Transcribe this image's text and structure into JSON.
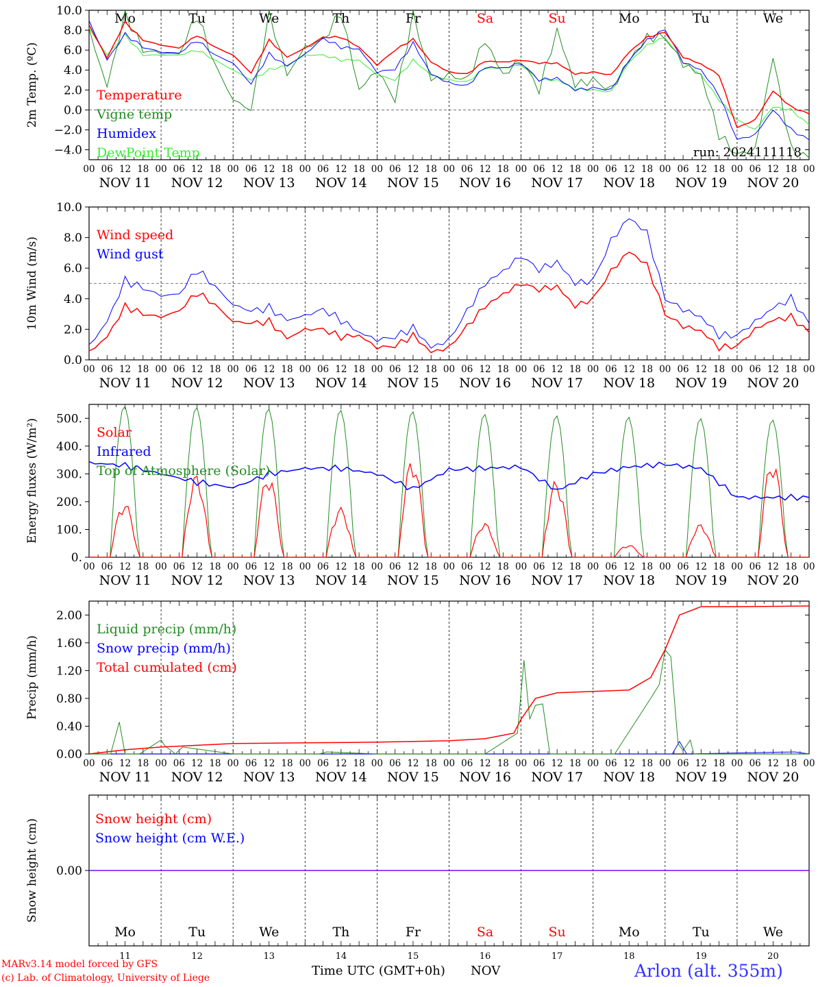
{
  "colors": {
    "red": "#ff0000",
    "darkgreen": "#228b22",
    "blue": "#0000ff",
    "lightgreen": "#33ee33",
    "purple": "#7f00ff",
    "weekend": "#ff0000",
    "footer_station": "#3333ff"
  },
  "days": {
    "weekday_labels": [
      "Mo",
      "Tu",
      "We",
      "Th",
      "Fr",
      "Sa",
      "Su",
      "Mo",
      "Tu",
      "We"
    ],
    "weekend_flags": [
      false,
      false,
      false,
      false,
      false,
      true,
      true,
      false,
      false,
      false
    ],
    "date_labels": [
      "NOV 11",
      "NOV 12",
      "NOV 13",
      "NOV 14",
      "NOV 15",
      "NOV 16",
      "NOV 17",
      "NOV 18",
      "NOV 19",
      "NOV 20"
    ],
    "day_numbers": [
      "11",
      "12",
      "13",
      "14",
      "15",
      "16",
      "17",
      "18",
      "19",
      "20"
    ],
    "hour_labels": [
      "00",
      "06",
      "12",
      "18"
    ],
    "final_hour_label": "00"
  },
  "panels": {
    "temp": {
      "ylabel": "2m Temp. (ºC)",
      "tick_labels": [
        "10.0",
        "8.0",
        "6.0",
        "4.0",
        "2.0",
        "0.0",
        "−2.0",
        "−4.0"
      ],
      "legend": [
        "Temperature",
        "Vigne temp",
        "Humidex",
        "DewPoint Temp"
      ],
      "run_label": "run: 2024111118"
    },
    "wind": {
      "ylabel": "10m Wind (m/s)",
      "tick_labels": [
        "10.0",
        "8.0",
        "6.0",
        "4.0",
        "2.0",
        "0.0"
      ],
      "legend": [
        "Wind speed",
        "Wind gust"
      ]
    },
    "energy": {
      "ylabel": "Energy fluxes (W/m²)",
      "tick_labels": [
        "500.",
        "400.",
        "300.",
        "200.",
        "100.",
        "0."
      ],
      "legend": [
        "Solar",
        "Infrared",
        "Top of Atmosphere (Solar)"
      ]
    },
    "precip": {
      "ylabel": "Precip (mm/h)",
      "tick_labels": [
        "2.00",
        "1.60",
        "1.20",
        "0.80",
        "0.40",
        "0.00"
      ],
      "legend": [
        "Liquid precip (mm/h)",
        "Snow precip (mm/h)",
        "Total cumulated (cm)"
      ]
    },
    "snow": {
      "ylabel": "Snow height (cm)",
      "tick_labels": [
        "0.00"
      ],
      "legend": [
        "Snow height (cm)",
        "Snow height (cm W.E.)"
      ]
    }
  },
  "footer": {
    "model_line": "MARv3.14 model forced by GFS",
    "copyright_line": "(c) Lab. of Climatology, University of Liege",
    "axis_title": "Time UTC (GMT+0h)",
    "month": "NOV",
    "station": "Arlon (alt. 355m)"
  },
  "chart_data": [
    {
      "type": "line",
      "title": "",
      "ylabel": "2m Temp. (ºC)",
      "ylim": [
        -5,
        10
      ],
      "x_range_days": [
        0,
        10
      ],
      "x_unit": "days since NOV 11 00 UTC",
      "reference_line": 0,
      "series": [
        {
          "name": "Temperature",
          "color": "#ff0000",
          "x": [
            0,
            0.25,
            0.5,
            0.75,
            1,
            1.25,
            1.5,
            1.75,
            2,
            2.25,
            2.5,
            2.75,
            3,
            3.25,
            3.5,
            3.75,
            4,
            4.25,
            4.5,
            4.75,
            5,
            5.25,
            5.5,
            5.75,
            6,
            6.25,
            6.5,
            6.75,
            7,
            7.25,
            7.5,
            7.75,
            8,
            8.25,
            8.5,
            8.75,
            9,
            9.25,
            9.5,
            9.75,
            10
          ],
          "values": [
            8.5,
            5.2,
            8.8,
            7.0,
            6.5,
            6.2,
            7.5,
            6.3,
            5.5,
            3.7,
            7.0,
            5.3,
            6.2,
            7.3,
            7.3,
            6.3,
            4.5,
            6.0,
            7.1,
            4.8,
            3.8,
            3.6,
            4.9,
            4.8,
            5.0,
            4.7,
            4.7,
            3.6,
            3.8,
            3.5,
            5.8,
            7.3,
            7.8,
            5.3,
            4.6,
            3.5,
            -1.8,
            -1.0,
            1.9,
            0.3,
            -0.4
          ]
        },
        {
          "name": "Vigne temp",
          "color": "#228b22",
          "x": [
            0,
            0.25,
            0.5,
            0.75,
            1,
            1.25,
            1.5,
            1.75,
            2,
            2.25,
            2.5,
            2.75,
            3,
            3.25,
            3.5,
            3.75,
            4,
            4.25,
            4.5,
            4.75,
            5,
            5.25,
            5.5,
            5.75,
            6,
            6.25,
            6.5,
            6.75,
            7,
            7.25,
            7.5,
            7.75,
            8,
            8.25,
            8.5,
            8.75,
            9,
            9.25,
            9.5,
            9.75,
            10
          ],
          "values": [
            8.0,
            2.3,
            9.8,
            6.0,
            5.7,
            5.6,
            9.5,
            4.5,
            1.0,
            0.0,
            9.8,
            3.5,
            6.3,
            7.0,
            9.8,
            2.0,
            4.0,
            1.0,
            9.6,
            3.0,
            3.5,
            3.0,
            7.0,
            3.5,
            5.0,
            2.0,
            8.0,
            2.5,
            3.0,
            2.0,
            5.0,
            7.3,
            7.3,
            4.6,
            3.5,
            -2.5,
            -4.5,
            -4.0,
            5.3,
            -4.0,
            -4.8
          ]
        },
        {
          "name": "Humidex",
          "color": "#0000ff",
          "x": [
            0,
            0.25,
            0.5,
            0.75,
            1,
            1.25,
            1.5,
            1.75,
            2,
            2.25,
            2.5,
            2.75,
            3,
            3.25,
            3.5,
            3.75,
            4,
            4.25,
            4.5,
            4.75,
            5,
            5.25,
            5.5,
            5.75,
            6,
            6.25,
            6.5,
            6.75,
            7,
            7.25,
            7.5,
            7.75,
            8,
            8.25,
            8.5,
            8.75,
            9,
            9.25,
            9.5,
            9.75,
            10
          ],
          "values": [
            8.9,
            5.0,
            7.6,
            6.3,
            5.8,
            5.7,
            7.0,
            5.5,
            4.7,
            2.6,
            5.6,
            4.4,
            5.6,
            7.2,
            6.3,
            6.1,
            3.8,
            4.1,
            6.7,
            3.6,
            2.7,
            2.4,
            4.3,
            4.2,
            4.7,
            3.0,
            3.2,
            2.0,
            2.2,
            2.0,
            5.0,
            7.0,
            8.1,
            4.8,
            4.0,
            1.5,
            -3.0,
            -2.5,
            0.0,
            -2.0,
            -3.0
          ]
        },
        {
          "name": "DewPoint Temp",
          "color": "#33ee33",
          "x": [
            0,
            0.25,
            0.5,
            0.75,
            1,
            1.25,
            1.5,
            1.75,
            2,
            2.25,
            2.5,
            2.75,
            3,
            3.25,
            3.5,
            3.75,
            4,
            4.25,
            4.5,
            4.75,
            5,
            5.25,
            5.5,
            5.75,
            6,
            6.25,
            6.5,
            6.75,
            7,
            7.25,
            7.5,
            7.75,
            8,
            8.25,
            8.5,
            8.75,
            9,
            9.25,
            9.5,
            9.75,
            10
          ],
          "values": [
            8.2,
            5.5,
            7.5,
            5.5,
            5.5,
            5.5,
            6.0,
            5.0,
            4.0,
            3.0,
            4.0,
            4.5,
            5.5,
            5.5,
            5.0,
            5.0,
            3.5,
            3.0,
            5.0,
            3.5,
            3.0,
            2.8,
            4.2,
            4.2,
            4.5,
            3.0,
            3.0,
            2.1,
            2.0,
            1.8,
            4.8,
            6.5,
            7.3,
            4.8,
            3.5,
            1.0,
            -1.0,
            -2.0,
            0.3,
            0.0,
            -1.5
          ]
        }
      ]
    },
    {
      "type": "line",
      "title": "",
      "ylabel": "10m Wind (m/s)",
      "ylim": [
        0,
        10
      ],
      "x_range_days": [
        0,
        10
      ],
      "x_unit": "days since NOV 11 00 UTC",
      "reference_line": 5,
      "series": [
        {
          "name": "Wind speed",
          "color": "#ff0000",
          "x": [
            0,
            0.25,
            0.5,
            0.75,
            1,
            1.25,
            1.5,
            1.75,
            2,
            2.25,
            2.5,
            2.75,
            3,
            3.25,
            3.5,
            3.75,
            4,
            4.25,
            4.5,
            4.75,
            5,
            5.25,
            5.5,
            5.75,
            6,
            6.25,
            6.5,
            6.75,
            7,
            7.25,
            7.5,
            7.75,
            8,
            8.25,
            8.5,
            8.75,
            9,
            9.25,
            9.5,
            9.75,
            10
          ],
          "values": [
            0.5,
            1.5,
            3.5,
            3.0,
            2.8,
            3.2,
            4.4,
            3.6,
            2.5,
            2.4,
            2.5,
            1.4,
            2.0,
            2.0,
            1.5,
            1.6,
            0.8,
            0.9,
            1.6,
            0.5,
            0.8,
            2.2,
            3.5,
            4.3,
            5.0,
            4.6,
            4.8,
            3.5,
            4.0,
            5.8,
            7.1,
            6.2,
            3.0,
            2.2,
            1.9,
            0.8,
            0.9,
            2.0,
            2.6,
            2.8,
            1.8
          ]
        },
        {
          "name": "Wind gust",
          "color": "#0000ff",
          "x": [
            0,
            0.25,
            0.5,
            0.75,
            1,
            1.25,
            1.5,
            1.75,
            2,
            2.25,
            2.5,
            2.75,
            3,
            3.25,
            3.5,
            3.75,
            4,
            4.25,
            4.5,
            4.75,
            5,
            5.25,
            5.5,
            5.75,
            6,
            6.25,
            6.5,
            6.75,
            7,
            7.25,
            7.5,
            7.75,
            8,
            8.25,
            8.5,
            8.75,
            9,
            9.25,
            9.5,
            9.75,
            10
          ],
          "values": [
            0.9,
            2.5,
            5.2,
            4.7,
            4.2,
            4.3,
            5.9,
            4.8,
            3.6,
            3.2,
            3.4,
            2.6,
            2.9,
            3.3,
            2.6,
            1.8,
            1.3,
            1.5,
            2.1,
            0.8,
            1.3,
            3.2,
            5.0,
            5.8,
            6.8,
            5.9,
            6.4,
            5.0,
            5.2,
            7.8,
            9.3,
            8.3,
            4.0,
            3.3,
            2.8,
            1.6,
            1.6,
            2.5,
            3.4,
            4.0,
            2.4
          ]
        }
      ]
    },
    {
      "type": "line",
      "title": "",
      "ylabel": "Energy fluxes (W/m²)",
      "ylim": [
        0,
        550
      ],
      "x_range_days": [
        0,
        10
      ],
      "x_unit": "days since NOV 11 00 UTC",
      "daily_peaks": {
        "Solar": [
          200,
          300,
          300,
          180,
          360,
          125,
          280,
          45,
          120,
          355
        ],
        "Top of Atmosphere (Solar)": [
          545,
          540,
          535,
          530,
          525,
          515,
          510,
          505,
          500,
          495
        ]
      },
      "series": [
        {
          "name": "Solar",
          "color": "#ff0000",
          "note_values": "daily bell from ~07 to ~16 UTC peaking at daily_peaks.Solar"
        },
        {
          "name": "Infrared",
          "color": "#0000ff",
          "x": [
            0,
            0.5,
            1,
            1.5,
            2,
            2.5,
            3,
            3.5,
            4,
            4.5,
            5,
            5.5,
            6,
            6.5,
            7,
            7.5,
            8,
            8.5,
            9,
            9.5,
            10
          ],
          "values": [
            340,
            330,
            300,
            270,
            250,
            300,
            320,
            320,
            300,
            245,
            315,
            320,
            325,
            240,
            300,
            325,
            335,
            320,
            215,
            215,
            215
          ]
        },
        {
          "name": "Top of Atmosphere (Solar)",
          "color": "#228b22",
          "note_values": "daily bell from ~07 to ~16 UTC peaking at daily_peaks"
        }
      ]
    },
    {
      "type": "line",
      "title": "",
      "ylabel": "Precip (mm/h)",
      "ylim": [
        0,
        2.2
      ],
      "x_range_days": [
        0,
        10
      ],
      "x_unit": "days since NOV 11 00 UTC",
      "series": [
        {
          "name": "Liquid precip (mm/h)",
          "color": "#228b22",
          "x": [
            0,
            0.3,
            0.42,
            0.5,
            0.7,
            1.0,
            1.05,
            1.2,
            1.3,
            2,
            3.2,
            3.3,
            4,
            5.5,
            5.95,
            6.04,
            6.12,
            6.2,
            6.3,
            6.4,
            7.3,
            7.8,
            7.92,
            8.0,
            8.08,
            8.18,
            8.25,
            8.35,
            8.4,
            9,
            10
          ],
          "values": [
            0,
            0,
            0.46,
            0,
            0,
            0.2,
            0.12,
            0,
            0.1,
            0,
            0,
            0.03,
            0,
            0,
            0.3,
            1.35,
            0.5,
            0.7,
            0.72,
            0,
            0,
            0.8,
            1.0,
            1.5,
            1.4,
            0.15,
            0.05,
            0.2,
            0,
            0,
            0
          ]
        },
        {
          "name": "Snow precip (mm/h)",
          "color": "#0000ff",
          "x": [
            0,
            8.1,
            8.2,
            8.3,
            9.8,
            10
          ],
          "values": [
            0,
            0,
            0.18,
            0,
            0.03,
            0
          ]
        },
        {
          "name": "Total cumulated (cm)",
          "color": "#ff0000",
          "x": [
            0,
            0.5,
            1.0,
            2,
            3,
            4,
            5,
            5.5,
            5.9,
            6.0,
            6.2,
            6.5,
            7,
            7.5,
            7.8,
            8.0,
            8.2,
            8.5,
            9,
            10
          ],
          "values": [
            0.0,
            0.06,
            0.1,
            0.15,
            0.16,
            0.17,
            0.19,
            0.22,
            0.3,
            0.5,
            0.8,
            0.88,
            0.9,
            0.92,
            1.1,
            1.5,
            2.0,
            2.12,
            2.12,
            2.13
          ]
        }
      ]
    },
    {
      "type": "line",
      "title": "",
      "ylabel": "Snow height (cm)",
      "ylim": [
        -1,
        1
      ],
      "x_range_days": [
        0,
        10
      ],
      "x_unit": "days since NOV 11 00 UTC",
      "series": [
        {
          "name": "Snow height (cm)",
          "color": "#ff0000",
          "x": [
            0,
            10
          ],
          "values": [
            0,
            0
          ]
        },
        {
          "name": "Snow height (cm W.E.)",
          "color": "#0000ff",
          "x": [
            0,
            10
          ],
          "values": [
            0,
            0
          ]
        }
      ]
    }
  ]
}
